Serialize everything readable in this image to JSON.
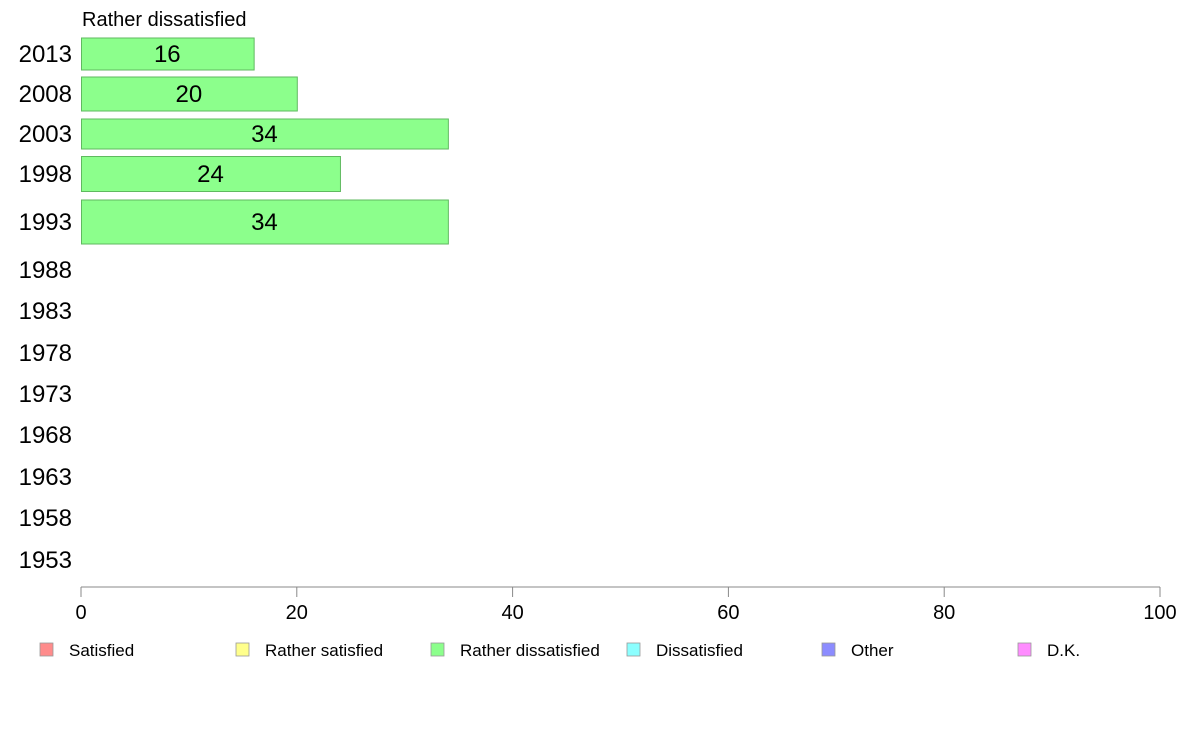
{
  "chart_data": {
    "type": "bar",
    "orientation": "horizontal",
    "title": "Rather dissatisfied",
    "categories": [
      "2013",
      "2008",
      "2003",
      "1998",
      "1993",
      "1988",
      "1983",
      "1978",
      "1973",
      "1968",
      "1963",
      "1958",
      "1953"
    ],
    "series": [
      {
        "name": "Rather dissatisfied",
        "values": [
          16,
          20,
          34,
          24,
          34,
          null,
          null,
          null,
          null,
          null,
          null,
          null,
          null
        ]
      }
    ],
    "xlim": [
      0,
      100
    ],
    "xticks": [
      0,
      20,
      40,
      60,
      80,
      100
    ],
    "grid": false,
    "legend_position": "bottom",
    "legend": [
      {
        "label": "Satisfied",
        "color": "#ff8c8c"
      },
      {
        "label": "Rather satisfied",
        "color": "#ffff8c"
      },
      {
        "label": "Rather dissatisfied",
        "color": "#8cff8c"
      },
      {
        "label": "Dissatisfied",
        "color": "#8cffff"
      },
      {
        "label": "Other",
        "color": "#8c8cff"
      },
      {
        "label": "D.K.",
        "color": "#ff8cff"
      }
    ],
    "bar_color": "#8cff8c",
    "bar_stroke": "#5fba5f"
  }
}
